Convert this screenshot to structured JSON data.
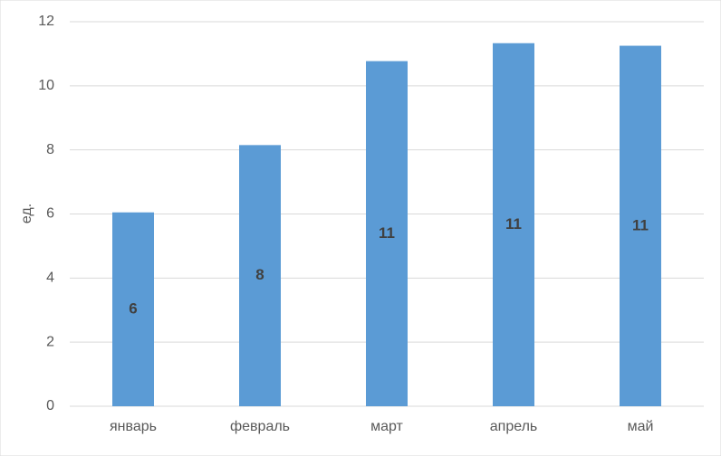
{
  "chart_data": {
    "type": "bar",
    "y_label": "ед.",
    "categories": [
      "январь",
      "февраль",
      "март",
      "апрель",
      "май"
    ],
    "values": [
      6.05,
      8.15,
      10.77,
      11.33,
      11.25
    ],
    "value_labels": [
      "6",
      "8",
      "11",
      "11",
      "11"
    ],
    "color": "#5b9bd5",
    "ylim": [
      0,
      12
    ],
    "yticks": [
      0,
      2,
      4,
      6,
      8,
      10,
      12
    ],
    "grid": true
  }
}
